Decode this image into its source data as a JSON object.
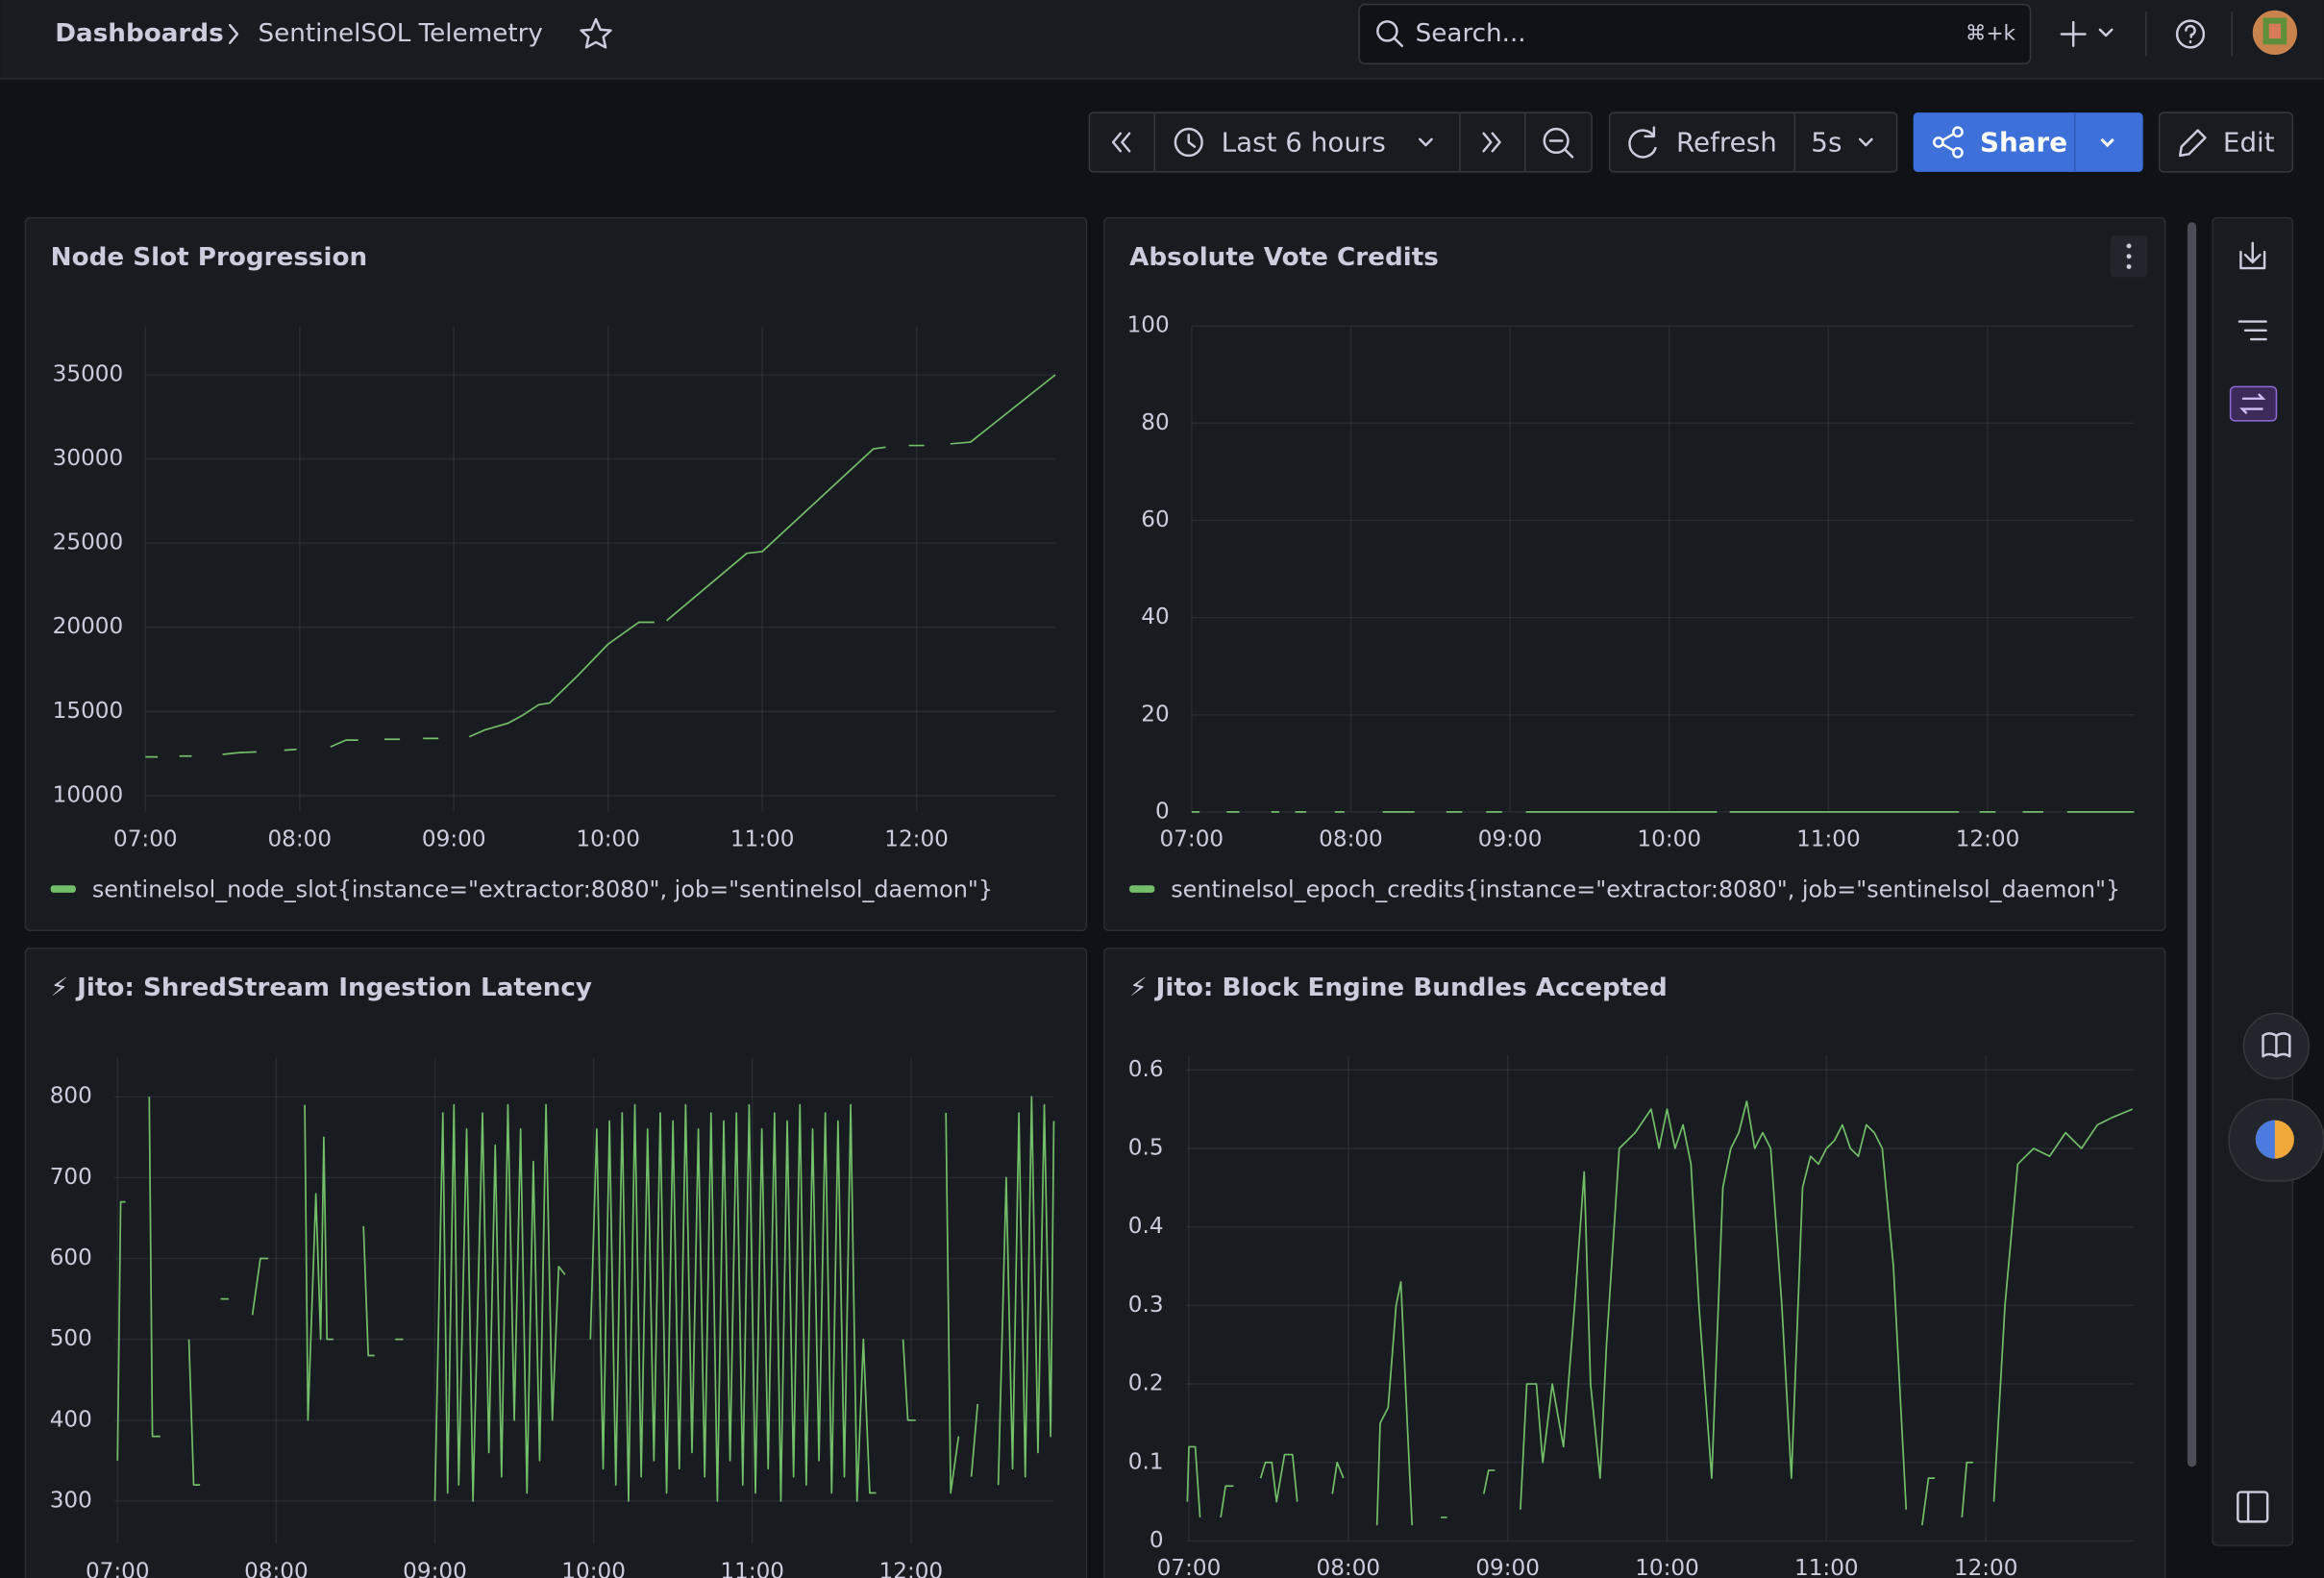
{
  "header": {
    "breadcrumb": [
      "Dashboards",
      "SentinelSOL Telemetry"
    ],
    "search_placeholder": "Search...",
    "search_shortcut": "⌘+k"
  },
  "toolbar": {
    "time_range": "Last 6 hours",
    "refresh": "Refresh",
    "refresh_interval": "5s",
    "share": "Share",
    "edit": "Edit"
  },
  "chart_data": [
    {
      "type": "line",
      "title": "Node Slot Progression",
      "grid": true,
      "legend": "bottom",
      "x": [
        7.0,
        7.08,
        7.12,
        7.22,
        7.3,
        7.34,
        7.5,
        7.6,
        7.72,
        7.76,
        7.9,
        7.98,
        8.02,
        8.2,
        8.3,
        8.38,
        8.42,
        8.55,
        8.65,
        8.7,
        8.8,
        8.9,
        8.94,
        9.1,
        9.2,
        9.35,
        9.45,
        9.55,
        9.62,
        9.8,
        10.0,
        10.2,
        10.3,
        10.33,
        10.38,
        10.9,
        11.0,
        11.72,
        11.8,
        11.84,
        11.95,
        12.05,
        12.08,
        12.22,
        12.35,
        12.9
      ],
      "series": [
        {
          "name": "sentinelsol_node_slot{instance=\"extractor:8080\", job=\"sentinelsol_daemon\"}",
          "color": "#73bf69",
          "values": [
            12300,
            12300,
            null,
            12350,
            12350,
            null,
            12450,
            12550,
            12600,
            null,
            12700,
            12750,
            null,
            12900,
            13300,
            13300,
            null,
            13350,
            13350,
            null,
            13400,
            13400,
            null,
            13500,
            13900,
            14300,
            14800,
            15400,
            15500,
            17100,
            19000,
            20300,
            20300,
            null,
            20400,
            24400,
            24500,
            30600,
            30700,
            null,
            30800,
            30800,
            null,
            30900,
            31000,
            35000
          ]
        }
      ],
      "xlim": [
        7.0,
        12.9
      ],
      "xticks": [
        {
          "value": 7,
          "label": "07:00"
        },
        {
          "value": 8,
          "label": "08:00"
        },
        {
          "value": 9,
          "label": "09:00"
        },
        {
          "value": 10,
          "label": "10:00"
        },
        {
          "value": 11,
          "label": "11:00"
        },
        {
          "value": 12,
          "label": "12:00"
        }
      ],
      "ylim": [
        9030,
        37900
      ],
      "yticks": [
        10000,
        15000,
        20000,
        25000,
        30000,
        35000
      ]
    },
    {
      "type": "line",
      "title": "Absolute Vote Credits",
      "grid": true,
      "legend": "bottom",
      "x": [
        7.0,
        7.05,
        7.1,
        7.22,
        7.3,
        7.35,
        7.5,
        7.55,
        7.6,
        7.65,
        7.72,
        7.78,
        7.9,
        7.96,
        8.0,
        8.2,
        8.4,
        8.45,
        8.6,
        8.7,
        8.75,
        8.85,
        8.95,
        9.0,
        9.1,
        10.3,
        10.35,
        10.38,
        11.82,
        11.88,
        11.95,
        12.05,
        12.1,
        12.22,
        12.35,
        12.42,
        12.5,
        12.92
      ],
      "series": [
        {
          "name": "sentinelsol_epoch_credits{instance=\"extractor:8080\", job=\"sentinelsol_daemon\"}",
          "color": "#73bf69",
          "values": [
            0,
            0,
            null,
            0,
            0,
            null,
            0,
            0,
            null,
            0,
            0,
            null,
            0,
            0,
            null,
            0,
            0,
            null,
            0,
            0,
            null,
            0,
            0,
            null,
            0,
            0,
            null,
            0,
            0,
            null,
            0,
            0,
            null,
            0,
            0,
            null,
            0,
            0
          ]
        }
      ],
      "xlim": [
        7.0,
        12.92
      ],
      "xticks": [
        {
          "value": 7,
          "label": "07:00"
        },
        {
          "value": 8,
          "label": "08:00"
        },
        {
          "value": 9,
          "label": "09:00"
        },
        {
          "value": 10,
          "label": "10:00"
        },
        {
          "value": 11,
          "label": "11:00"
        },
        {
          "value": 12,
          "label": "12:00"
        }
      ],
      "ylim": [
        0,
        100
      ],
      "yticks": [
        0,
        20,
        40,
        60,
        80,
        100
      ]
    },
    {
      "type": "line",
      "title": "⚡ Jito: ShredStream Ingestion Latency",
      "grid": true,
      "x": [
        7.0,
        7.02,
        7.05,
        7.07,
        7.2,
        7.22,
        7.27,
        7.3,
        7.45,
        7.48,
        7.52,
        7.55,
        7.65,
        7.7,
        7.74,
        7.85,
        7.9,
        7.95,
        7.98,
        8.18,
        8.2,
        8.25,
        8.28,
        8.3,
        8.32,
        8.36,
        8.38,
        8.55,
        8.58,
        8.62,
        8.65,
        8.75,
        8.8,
        8.84,
        9.0,
        9.05,
        9.08,
        9.12,
        9.15,
        9.2,
        9.24,
        9.3,
        9.34,
        9.38,
        9.42,
        9.46,
        9.5,
        9.54,
        9.58,
        9.62,
        9.66,
        9.7,
        9.74,
        9.78,
        9.82,
        9.85,
        9.98,
        10.02,
        10.06,
        10.1,
        10.14,
        10.18,
        10.22,
        10.26,
        10.3,
        10.34,
        10.38,
        10.42,
        10.46,
        10.5,
        10.54,
        10.58,
        10.62,
        10.66,
        10.7,
        10.74,
        10.78,
        10.82,
        10.86,
        10.9,
        10.94,
        10.98,
        11.02,
        11.06,
        11.1,
        11.14,
        11.18,
        11.22,
        11.26,
        11.3,
        11.34,
        11.38,
        11.42,
        11.46,
        11.5,
        11.54,
        11.58,
        11.62,
        11.66,
        11.7,
        11.74,
        11.78,
        11.8,
        11.95,
        11.98,
        12.03,
        12.06,
        12.22,
        12.25,
        12.3,
        12.32,
        12.38,
        12.42,
        12.45,
        12.55,
        12.6,
        12.64,
        12.68,
        12.72,
        12.76,
        12.8,
        12.84,
        12.88,
        12.9
      ],
      "series": [
        {
          "color": "#73bf69",
          "values": [
            350,
            670,
            670,
            null,
            800,
            380,
            380,
            null,
            500,
            320,
            320,
            null,
            550,
            550,
            null,
            530,
            600,
            600,
            null,
            790,
            400,
            680,
            500,
            750,
            500,
            500,
            null,
            640,
            480,
            480,
            null,
            500,
            500,
            null,
            300,
            780,
            310,
            790,
            320,
            760,
            300,
            780,
            360,
            740,
            330,
            790,
            400,
            760,
            310,
            720,
            350,
            790,
            400,
            590,
            580,
            null,
            500,
            760,
            340,
            770,
            320,
            780,
            300,
            790,
            330,
            760,
            350,
            780,
            310,
            770,
            340,
            790,
            360,
            760,
            330,
            780,
            300,
            770,
            350,
            780,
            320,
            790,
            310,
            760,
            340,
            780,
            300,
            770,
            330,
            790,
            320,
            760,
            350,
            780,
            310,
            770,
            330,
            790,
            300,
            500,
            310,
            310,
            null,
            500,
            400,
            400,
            null,
            780,
            310,
            380,
            null,
            330,
            420,
            null,
            320,
            700,
            340,
            780,
            330,
            800,
            360,
            790,
            380,
            770
          ]
        }
      ],
      "xlim": [
        6.98,
        12.9
      ],
      "xticks": [
        {
          "value": 7,
          "label": "07:00"
        },
        {
          "value": 8,
          "label": "08:00"
        },
        {
          "value": 9,
          "label": "09:00"
        },
        {
          "value": 10,
          "label": "10:00"
        },
        {
          "value": 11,
          "label": "11:00"
        },
        {
          "value": 12,
          "label": "12:00"
        }
      ],
      "ylim": [
        247,
        848
      ],
      "yticks": [
        300,
        400,
        500,
        600,
        700,
        800
      ]
    },
    {
      "type": "line",
      "title": "⚡ Jito: Block Engine Bundles Accepted",
      "grid": true,
      "x": [
        6.99,
        7.0,
        7.04,
        7.07,
        7.1,
        7.2,
        7.23,
        7.28,
        7.3,
        7.45,
        7.48,
        7.52,
        7.55,
        7.6,
        7.65,
        7.68,
        7.72,
        7.9,
        7.93,
        7.97,
        8.0,
        8.18,
        8.2,
        8.25,
        8.3,
        8.33,
        8.37,
        8.4,
        8.43,
        8.58,
        8.62,
        8.65,
        8.85,
        8.88,
        8.92,
        8.95,
        9.08,
        9.12,
        9.18,
        9.22,
        9.28,
        9.35,
        9.42,
        9.48,
        9.52,
        9.58,
        9.62,
        9.7,
        9.8,
        9.9,
        9.95,
        10.0,
        10.05,
        10.1,
        10.15,
        10.2,
        10.28,
        10.35,
        10.4,
        10.45,
        10.5,
        10.55,
        10.6,
        10.65,
        10.72,
        10.78,
        10.85,
        10.9,
        10.95,
        11.0,
        11.05,
        11.1,
        11.15,
        11.2,
        11.25,
        11.3,
        11.35,
        11.42,
        11.5,
        11.52,
        11.6,
        11.64,
        11.68,
        11.7,
        11.85,
        11.88,
        11.92,
        11.94,
        12.05,
        12.12,
        12.2,
        12.3,
        12.4,
        12.5,
        12.6,
        12.7,
        12.8,
        12.92
      ],
      "series": [
        {
          "color": "#73bf69",
          "values": [
            0.05,
            0.12,
            0.12,
            0.03,
            null,
            0.03,
            0.07,
            0.07,
            null,
            0.08,
            0.1,
            0.1,
            0.05,
            0.11,
            0.11,
            0.05,
            null,
            0.06,
            0.1,
            0.08,
            null,
            0.02,
            0.15,
            0.17,
            0.3,
            0.33,
            0.15,
            0.02,
            null,
            0.03,
            0.03,
            null,
            0.06,
            0.09,
            0.09,
            null,
            0.04,
            0.2,
            0.2,
            0.1,
            0.2,
            0.12,
            0.3,
            0.47,
            0.2,
            0.08,
            0.25,
            0.5,
            0.52,
            0.55,
            0.5,
            0.55,
            0.5,
            0.53,
            0.48,
            0.3,
            0.08,
            0.45,
            0.5,
            0.52,
            0.56,
            0.5,
            0.52,
            0.5,
            0.3,
            0.08,
            0.45,
            0.49,
            0.48,
            0.5,
            0.51,
            0.53,
            0.5,
            0.49,
            0.53,
            0.52,
            0.5,
            0.35,
            0.04,
            null,
            0.02,
            0.08,
            0.08,
            null,
            0.03,
            0.1,
            0.1,
            null,
            0.05,
            0.3,
            0.48,
            0.5,
            0.49,
            0.52,
            0.5,
            0.53,
            0.54,
            0.55
          ]
        }
      ],
      "xlim": [
        6.98,
        12.93
      ],
      "xticks": [
        {
          "value": 7,
          "label": "07:00"
        },
        {
          "value": 8,
          "label": "08:00"
        },
        {
          "value": 9,
          "label": "09:00"
        },
        {
          "value": 10,
          "label": "10:00"
        },
        {
          "value": 11,
          "label": "11:00"
        },
        {
          "value": 12,
          "label": "12:00"
        }
      ],
      "ylim": [
        0,
        0.619
      ],
      "yticks": [
        0,
        0.1,
        0.2,
        0.3,
        0.4,
        0.5,
        0.6
      ]
    }
  ]
}
